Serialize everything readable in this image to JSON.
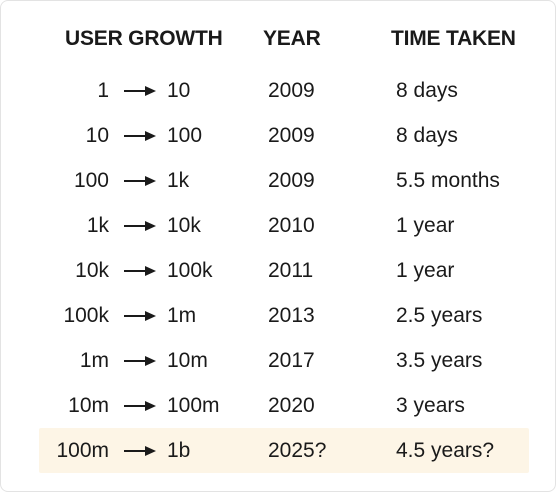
{
  "header": {
    "user_growth": "USER GROWTH",
    "year": "YEAR",
    "time_taken": "TIME TAKEN"
  },
  "rows": [
    {
      "from": "1",
      "to": "10",
      "year": "2009",
      "time": "8 days"
    },
    {
      "from": "10",
      "to": "100",
      "year": "2009",
      "time": "8 days"
    },
    {
      "from": "100",
      "to": "1k",
      "year": "2009",
      "time": "5.5 months"
    },
    {
      "from": "1k",
      "to": "10k",
      "year": "2010",
      "time": "1 year"
    },
    {
      "from": "10k",
      "to": "100k",
      "year": "2011",
      "time": "1 year"
    },
    {
      "from": "100k",
      "to": "1m",
      "year": "2013",
      "time": "2.5 years"
    },
    {
      "from": "1m",
      "to": "10m",
      "year": "2017",
      "time": "3.5 years"
    },
    {
      "from": "10m",
      "to": "100m",
      "year": "2020",
      "time": "3 years"
    },
    {
      "from": "100m",
      "to": "1b",
      "year": "2025?",
      "time": "4.5 years?"
    }
  ],
  "highlight_row_color": "#fdf5e6",
  "arrow_icon": "right-arrow-icon"
}
